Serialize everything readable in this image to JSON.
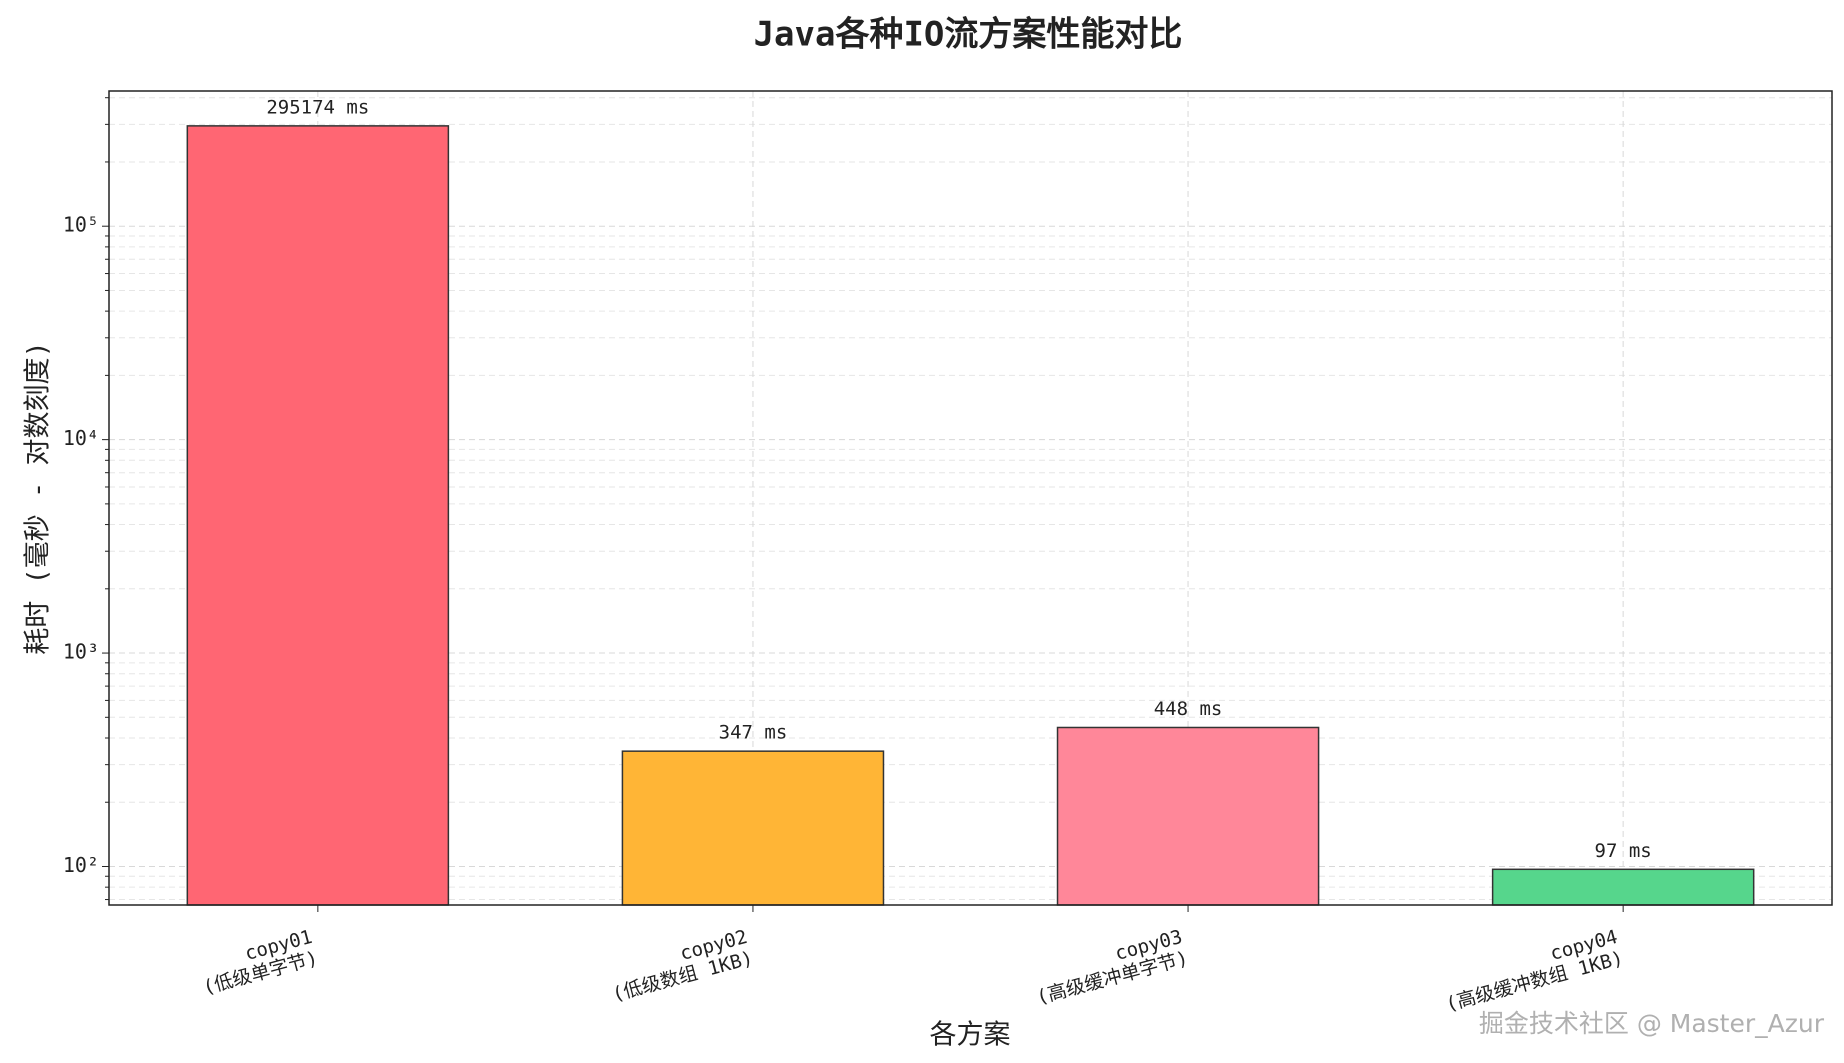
{
  "chart_data": {
    "type": "bar",
    "title": "Java各种IO流方案性能对比",
    "x_label": "各方案",
    "y_label": "耗时 (毫秒 - 对数刻度)",
    "categories": [
      [
        "copy01",
        "(低级单字节)"
      ],
      [
        "copy02",
        "(低级数组 1KB)"
      ],
      [
        "copy03",
        "(高级缓冲单字节)"
      ],
      [
        "copy04",
        "(高级缓冲数组 1KB)"
      ]
    ],
    "series": [
      {
        "name": "耗时",
        "values": [
          295174,
          347,
          448,
          97
        ],
        "value_labels": [
          "295174 ms",
          "347 ms",
          "448 ms",
          "97 ms"
        ],
        "colors": [
          "#ff6673",
          "#ffb536",
          "#ff8799",
          "#56d68c"
        ]
      }
    ],
    "log_scale": true,
    "ylim": [
      66,
      430000
    ],
    "yticks": [
      {
        "value": 100,
        "label": "10²"
      },
      {
        "value": 1000,
        "label": "10³"
      },
      {
        "value": 10000,
        "label": "10⁴"
      },
      {
        "value": 100000,
        "label": "10⁵"
      }
    ],
    "yminorticks": [
      70,
      80,
      90,
      200,
      300,
      400,
      500,
      600,
      700,
      800,
      900,
      2000,
      3000,
      4000,
      5000,
      6000,
      7000,
      8000,
      9000,
      20000,
      30000,
      40000,
      50000,
      60000,
      70000,
      80000,
      90000,
      200000,
      300000,
      400000
    ],
    "grid": true,
    "watermark": "掘金技术社区 @ Master_Azur"
  }
}
